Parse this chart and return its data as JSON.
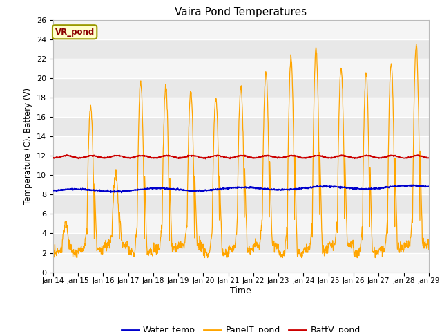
{
  "title": "Vaira Pond Temperatures",
  "xlabel": "Time",
  "ylabel": "Temperature (C), Battery (V)",
  "ylim": [
    0,
    26
  ],
  "yticks": [
    0,
    2,
    4,
    6,
    8,
    10,
    12,
    14,
    16,
    18,
    20,
    22,
    24,
    26
  ],
  "xtick_labels": [
    "Jan 14",
    "Jan 15",
    "Jan 16",
    "Jan 17",
    "Jan 18",
    "Jan 19",
    "Jan 20",
    "Jan 21",
    "Jan 22",
    "Jan 23",
    "Jan 24",
    "Jan 25",
    "Jan 26",
    "Jan 27",
    "Jan 28",
    "Jan 29"
  ],
  "water_color": "#0000cc",
  "panel_color": "#ffa500",
  "batt_color": "#cc0000",
  "bg_color": "#e8e8e8",
  "stripe_color": "#f5f5f5",
  "legend_labels": [
    "Water_temp",
    "PanelT_pond",
    "BattV_pond"
  ],
  "annotation_text": "VR_pond",
  "annotation_bg": "#ffffcc",
  "annotation_border": "#999900",
  "n_days": 15
}
